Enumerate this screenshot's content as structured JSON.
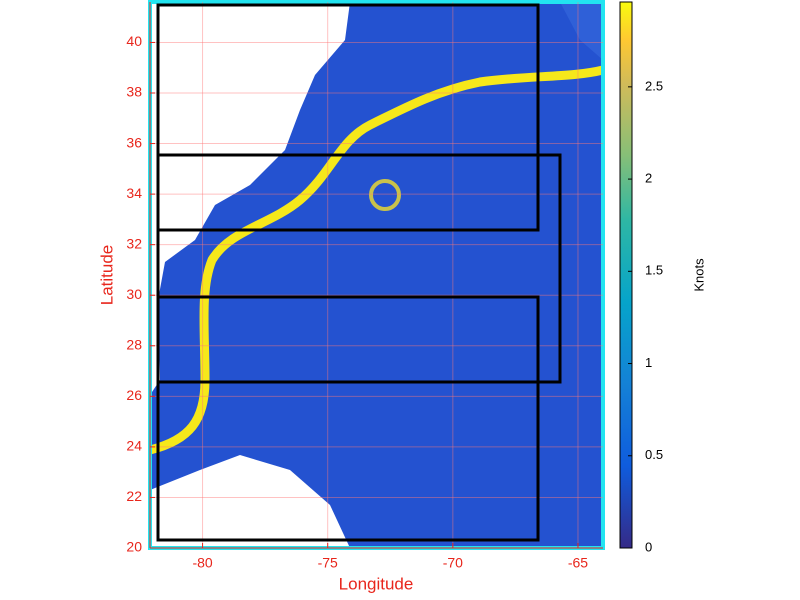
{
  "chart_data": {
    "type": "heatmap",
    "xlabel": "Longitude",
    "ylabel": "Latitude",
    "xlim": [
      -82.1,
      -64
    ],
    "ylim": [
      20,
      41.6
    ],
    "xticks": [
      -80,
      -75,
      -70,
      -65
    ],
    "yticks": [
      20,
      22,
      24,
      26,
      28,
      30,
      32,
      34,
      36,
      38,
      40
    ],
    "grid": true,
    "colorbar": {
      "label": "Knots",
      "lim": [
        0,
        2.96
      ],
      "ticks": [
        0,
        0.5,
        1,
        1.5,
        2,
        2.5
      ]
    }
  }
}
